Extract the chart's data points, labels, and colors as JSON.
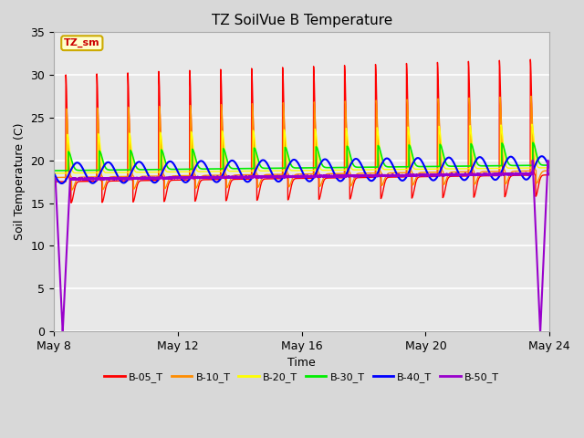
{
  "title": "TZ SoilVue B Temperature",
  "xlabel": "Time",
  "ylabel": "Soil Temperature (C)",
  "ylim": [
    0,
    35
  ],
  "xlim_days": [
    0,
    16
  ],
  "x_ticks_labels": [
    "May 8",
    "May 12",
    "May 16",
    "May 20",
    "May 24"
  ],
  "x_ticks_positions": [
    0,
    4,
    8,
    12,
    16
  ],
  "yticks": [
    0,
    5,
    10,
    15,
    20,
    25,
    30,
    35
  ],
  "bg_color": "#d8d8d8",
  "plot_bg_color": "#e8e8e8",
  "grid_color": "#ffffff",
  "series": [
    {
      "name": "B-05_T",
      "color": "#ff0000"
    },
    {
      "name": "B-10_T",
      "color": "#ff8c00"
    },
    {
      "name": "B-20_T",
      "color": "#ffff00"
    },
    {
      "name": "B-30_T",
      "color": "#00ee00"
    },
    {
      "name": "B-40_T",
      "color": "#0000ff"
    },
    {
      "name": "B-50_T",
      "color": "#9900cc"
    }
  ],
  "annotation_text": "TZ_sm",
  "annotation_color": "#cc0000",
  "annotation_bg": "#ffffcc",
  "annotation_border": "#ccaa00"
}
